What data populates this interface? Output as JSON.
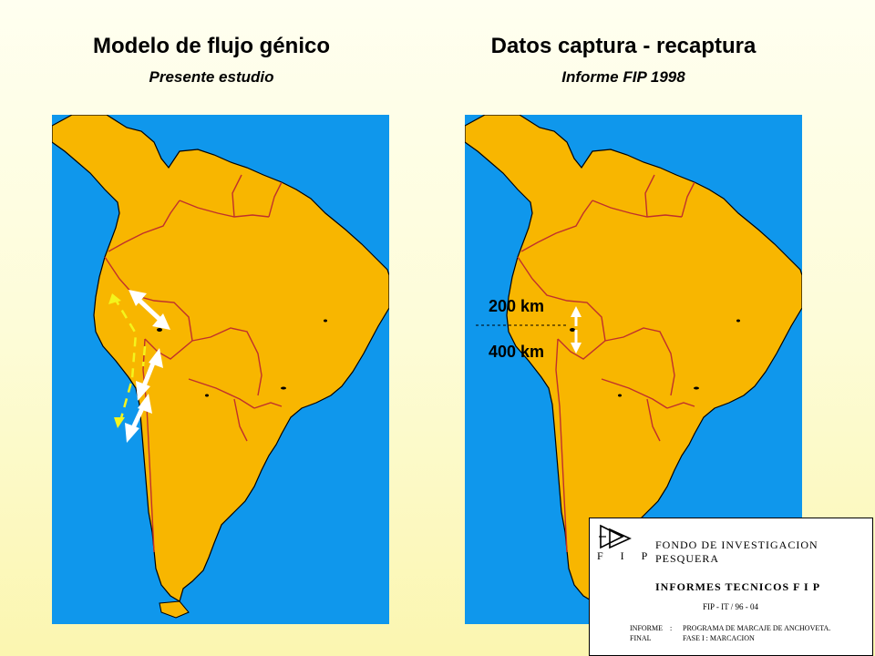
{
  "left_panel": {
    "title": "Modelo de flujo génico",
    "subtitle": "Presente estudio"
  },
  "right_panel": {
    "title": "Datos captura - recaptura",
    "subtitle": "Informe FIP 1998",
    "distance_labels": [
      "200 km",
      "400 km"
    ]
  },
  "document": {
    "organization": "FONDO DE INVESTIGACION PESQUERA",
    "logo_letters": "F I P",
    "series": "INFORMES TECNICOS F I P",
    "code": "FIP - IT / 96 - 04",
    "rows": [
      {
        "key": "INFORME",
        "sep": ":",
        "value": "PROGRAMA DE MARCAJE DE ANCHOVETA."
      },
      {
        "key": "FINAL",
        "sep": "",
        "value": "FASE I : MARCACION"
      }
    ]
  },
  "colors": {
    "ocean": "#0f97ec",
    "land": "#f8b600",
    "border": "#c0302c",
    "arrow_dashed": "#f4f41c",
    "arrow_double": "#ffffff"
  }
}
